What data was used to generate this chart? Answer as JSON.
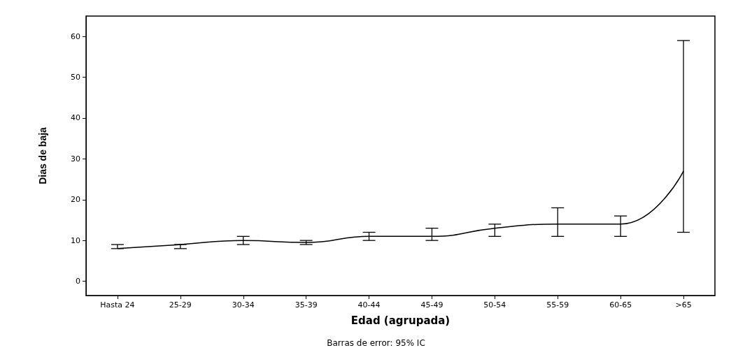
{
  "chart_data": {
    "type": "line",
    "xlabel": "Edad (agrupada)",
    "ylabel": "Dias de baja",
    "annotations": [
      "Barras de error: 95% IC"
    ],
    "categories": [
      "Hasta 24",
      "25-29",
      "30-34",
      "35-39",
      "40-44",
      "45-49",
      "50-54",
      "55-59",
      "60-65",
      ">65"
    ],
    "series": [
      {
        "color": "#000000",
        "values": [
          8,
          9,
          10,
          9.5,
          11,
          11,
          13,
          14,
          14,
          27
        ],
        "errors": [
          [
            8,
            9
          ],
          [
            8,
            9
          ],
          [
            9,
            11
          ],
          [
            9,
            10
          ],
          [
            10,
            12
          ],
          [
            10,
            13
          ],
          [
            11,
            14
          ],
          [
            11,
            18
          ],
          [
            11,
            16
          ],
          [
            12,
            59
          ]
        ]
      }
    ],
    "ylim": [
      -3.5,
      65
    ],
    "yticks": [
      0,
      10,
      20,
      30,
      40,
      50,
      60
    ],
    "grid": false,
    "marker": "none",
    "line_style": "solid"
  }
}
